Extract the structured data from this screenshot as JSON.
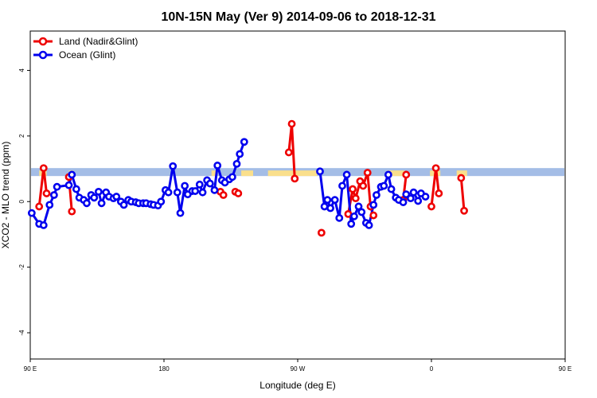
{
  "chart_data": {
    "type": "line",
    "title": "10N-15N May (Ver 9)   2014-09-06 to 2018-12-31",
    "xlabel": "Longitude (deg E)",
    "ylabel": "XCO2 - MLO trend (ppm)",
    "xlim": [
      90,
      450
    ],
    "ylim": [
      -4.8,
      5.2
    ],
    "x_ticks": [
      {
        "value": 90,
        "label": "90 E"
      },
      {
        "value": 180,
        "label": "180"
      },
      {
        "value": 270,
        "label": "90 W"
      },
      {
        "value": 360,
        "label": "0"
      },
      {
        "value": 450,
        "label": "90 E"
      },
      {
        "value": 540,
        "label": "180"
      }
    ],
    "y_ticks": [
      {
        "value": -4,
        "label": "-4"
      },
      {
        "value": -2,
        "label": "-2"
      },
      {
        "value": 0,
        "label": "0"
      },
      {
        "value": 2,
        "label": "2"
      },
      {
        "value": 4,
        "label": "4"
      }
    ],
    "legend_position": "top-left",
    "grid": false,
    "band": {
      "y": 0.9,
      "color": "#a4bde6",
      "land_color": "#fadf8c"
    },
    "series": [
      {
        "name": "Land (Nadir&Glint)",
        "color": "#ee0000",
        "segments": [
          [
            [
              96,
              -0.15
            ],
            [
              99,
              1.02
            ],
            [
              101,
              0.25
            ]
          ],
          [
            [
              116,
              0.75
            ],
            [
              118,
              -0.3
            ]
          ],
          [
            [
              218,
              0.3
            ],
            [
              220,
              0.2
            ]
          ],
          [
            [
              228,
              0.3
            ],
            [
              230,
              0.25
            ]
          ],
          [
            [
              264,
              1.5
            ],
            [
              266,
              2.37
            ],
            [
              268,
              0.7
            ]
          ],
          [
            [
              286,
              -0.95
            ]
          ],
          [
            [
              304,
              -0.38
            ],
            [
              307,
              0.38
            ],
            [
              309,
              0.1
            ],
            [
              312,
              0.62
            ],
            [
              314,
              0.48
            ],
            [
              317,
              0.88
            ],
            [
              319,
              -0.15
            ],
            [
              321,
              -0.42
            ]
          ],
          [
            [
              341,
              0.05
            ],
            [
              343,
              0.82
            ]
          ],
          [
            [
              360,
              -0.15
            ],
            [
              363,
              1.02
            ],
            [
              365,
              0.25
            ]
          ],
          [
            [
              380,
              0.72
            ],
            [
              382,
              -0.28
            ]
          ]
        ]
      },
      {
        "name": "Ocean (Glint)",
        "color": "#0000ee",
        "points": [
          [
            91,
            -0.35
          ],
          [
            96,
            -0.68
          ],
          [
            99,
            -0.72
          ],
          [
            103,
            -0.1
          ],
          [
            106,
            0.2
          ],
          [
            108,
            0.45
          ],
          [
            116,
            0.5
          ],
          [
            118,
            0.82
          ],
          [
            121,
            0.38
          ],
          [
            123,
            0.12
          ],
          [
            126,
            0.05
          ],
          [
            128,
            -0.05
          ],
          [
            131,
            0.2
          ],
          [
            133,
            0.12
          ],
          [
            136,
            0.3
          ],
          [
            138,
            -0.05
          ],
          [
            141,
            0.28
          ],
          [
            143,
            0.15
          ],
          [
            146,
            0.1
          ],
          [
            148,
            0.15
          ],
          [
            151,
            0.0
          ],
          [
            153,
            -0.1
          ],
          [
            156,
            0.05
          ],
          [
            158,
            0.0
          ],
          [
            161,
            -0.02
          ],
          [
            163,
            -0.05
          ],
          [
            166,
            -0.05
          ],
          [
            168,
            -0.05
          ],
          [
            171,
            -0.08
          ],
          [
            173,
            -0.1
          ],
          [
            176,
            -0.12
          ],
          [
            178,
            0.0
          ],
          [
            181,
            0.35
          ],
          [
            183,
            0.28
          ],
          [
            186,
            1.08
          ],
          [
            189,
            0.28
          ],
          [
            191,
            -0.35
          ],
          [
            194,
            0.48
          ],
          [
            196,
            0.22
          ],
          [
            199,
            0.32
          ],
          [
            201,
            0.32
          ],
          [
            204,
            0.52
          ],
          [
            206,
            0.28
          ],
          [
            209,
            0.65
          ],
          [
            211,
            0.55
          ],
          [
            214,
            0.35
          ],
          [
            216,
            1.1
          ],
          [
            219,
            0.65
          ],
          [
            221,
            0.58
          ],
          [
            224,
            0.68
          ],
          [
            226,
            0.75
          ],
          [
            229,
            1.15
          ],
          [
            231,
            1.45
          ],
          [
            234,
            1.82
          ]
        ],
        "points_b": [
          [
            285,
            0.92
          ],
          [
            288,
            -0.15
          ],
          [
            290,
            0.05
          ],
          [
            292,
            -0.2
          ],
          [
            295,
            0.05
          ],
          [
            298,
            -0.5
          ],
          [
            300,
            0.48
          ],
          [
            303,
            0.82
          ],
          [
            306,
            -0.68
          ],
          [
            308,
            -0.45
          ],
          [
            311,
            -0.15
          ],
          [
            313,
            -0.32
          ],
          [
            316,
            -0.65
          ],
          [
            318,
            -0.72
          ],
          [
            321,
            -0.1
          ],
          [
            323,
            0.2
          ],
          [
            326,
            0.45
          ],
          [
            328,
            0.48
          ],
          [
            331,
            0.82
          ],
          [
            333,
            0.38
          ],
          [
            336,
            0.12
          ],
          [
            338,
            0.05
          ],
          [
            341,
            -0.02
          ],
          [
            343,
            0.22
          ],
          [
            346,
            0.1
          ],
          [
            348,
            0.28
          ],
          [
            351,
            0.02
          ],
          [
            353,
            0.25
          ],
          [
            356,
            0.15
          ]
        ]
      }
    ]
  }
}
